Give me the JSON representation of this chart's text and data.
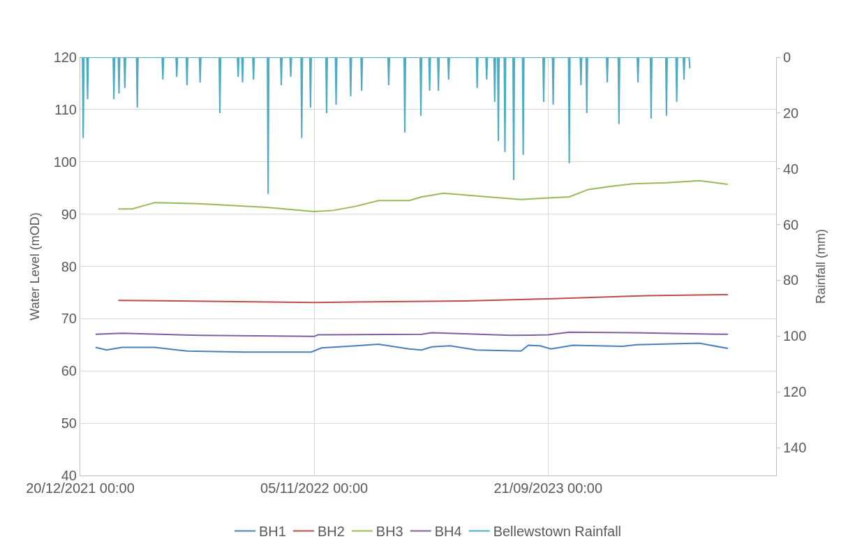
{
  "chart_data": {
    "type": "line",
    "xlabel": null,
    "ylabel": "Water Level (mOD)",
    "y2label": "Rainfall (mm)",
    "xlim": [
      "2021-12-20",
      "2024-07-29"
    ],
    "xticks": [
      {
        "value": "2021-12-20",
        "label": "20/12/2021 00:00"
      },
      {
        "value": "2022-11-05",
        "label": "05/11/2022 00:00"
      },
      {
        "value": "2023-09-21",
        "label": "21/09/2023 00:00"
      }
    ],
    "ylim": [
      40,
      120
    ],
    "yticks": [
      40,
      50,
      60,
      70,
      80,
      90,
      100,
      110,
      120
    ],
    "y2lim": [
      150,
      0
    ],
    "y2ticks": [
      0,
      20,
      40,
      60,
      80,
      100,
      120,
      140
    ],
    "grid": true,
    "legend": "bottom",
    "marker": "none",
    "line_style": "solid",
    "series": [
      {
        "name": "BH1",
        "color": "#4a7ebb",
        "x": [
          "2022-01-10",
          "2022-01-25",
          "2022-02-15",
          "2022-04-01",
          "2022-05-15",
          "2022-08-01",
          "2022-11-01",
          "2022-11-15",
          "2023-01-01",
          "2023-02-01",
          "2023-03-15",
          "2023-04-01",
          "2023-04-15",
          "2023-05-10",
          "2023-06-15",
          "2023-08-15",
          "2023-08-25",
          "2023-09-10",
          "2023-09-25",
          "2023-10-25",
          "2024-01-01",
          "2024-01-20",
          "2024-04-15",
          "2024-05-24"
        ],
        "values": [
          64.5,
          64.0,
          64.5,
          64.5,
          63.8,
          63.6,
          63.6,
          64.4,
          64.8,
          65.1,
          64.2,
          64.0,
          64.6,
          64.8,
          64.0,
          63.8,
          64.9,
          64.8,
          64.2,
          64.9,
          64.7,
          65.0,
          65.3,
          64.3
        ]
      },
      {
        "name": "BH2",
        "color": "#be4b48",
        "x": [
          "2022-02-10",
          "2022-11-05",
          "2023-06-01",
          "2023-09-21",
          "2024-02-01",
          "2024-05-24"
        ],
        "values": [
          73.5,
          73.1,
          73.4,
          73.8,
          74.4,
          74.6
        ]
      },
      {
        "name": "BH3",
        "color": "#98b954",
        "x": [
          "2022-02-10",
          "2022-03-01",
          "2022-04-01",
          "2022-06-01",
          "2022-09-01",
          "2022-11-05",
          "2022-12-01",
          "2023-01-01",
          "2023-02-01",
          "2023-03-15",
          "2023-04-01",
          "2023-05-01",
          "2023-07-01",
          "2023-08-15",
          "2023-09-21",
          "2023-10-20",
          "2023-11-15",
          "2023-12-15",
          "2024-01-15",
          "2024-03-01",
          "2024-04-15",
          "2024-05-24"
        ],
        "values": [
          91.0,
          91.0,
          92.2,
          92.0,
          91.3,
          90.5,
          90.7,
          91.5,
          92.6,
          92.6,
          93.3,
          94.0,
          93.3,
          92.8,
          93.1,
          93.3,
          94.7,
          95.3,
          95.8,
          96.0,
          96.4,
          95.7
        ]
      },
      {
        "name": "BH4",
        "color": "#7d60a0",
        "x": [
          "2022-01-10",
          "2022-02-15",
          "2022-06-01",
          "2022-11-05",
          "2022-11-10",
          "2023-04-01",
          "2023-04-15",
          "2023-08-01",
          "2023-09-21",
          "2023-10-20",
          "2024-01-15",
          "2024-05-24"
        ],
        "values": [
          67.0,
          67.2,
          66.8,
          66.6,
          66.9,
          67.0,
          67.3,
          66.8,
          66.9,
          67.4,
          67.3,
          67.0
        ]
      },
      {
        "name": "Bellewstown Rainfall",
        "color": "#4bacc6",
        "axis": "y2",
        "x": [
          "2021-12-20",
          "2021-12-23",
          "2021-12-24",
          "2021-12-25",
          "2021-12-29",
          "2021-12-30",
          "2021-12-31",
          "2022-02-03",
          "2022-02-04",
          "2022-02-05",
          "2022-02-10",
          "2022-02-11",
          "2022-02-12",
          "2022-02-18",
          "2022-02-19",
          "2022-02-20",
          "2022-03-07",
          "2022-03-08",
          "2022-03-09",
          "2022-04-11",
          "2022-04-12",
          "2022-04-13",
          "2022-04-30",
          "2022-05-01",
          "2022-05-02",
          "2022-05-14",
          "2022-05-15",
          "2022-05-16",
          "2022-06-01",
          "2022-06-02",
          "2022-06-03",
          "2022-06-28",
          "2022-06-29",
          "2022-06-30",
          "2022-07-23",
          "2022-07-24",
          "2022-07-25",
          "2022-07-29",
          "2022-07-30",
          "2022-07-31",
          "2022-08-13",
          "2022-08-14",
          "2022-08-15",
          "2022-09-02",
          "2022-09-03",
          "2022-09-04",
          "2022-09-20",
          "2022-09-21",
          "2022-09-22",
          "2022-10-03",
          "2022-10-04",
          "2022-10-05",
          "2022-10-18",
          "2022-10-19",
          "2022-10-20",
          "2022-10-30",
          "2022-10-31",
          "2022-11-01",
          "2022-11-21",
          "2022-11-22",
          "2022-11-23",
          "2022-12-04",
          "2022-12-05",
          "2022-12-06",
          "2022-12-24",
          "2022-12-25",
          "2022-12-26",
          "2023-01-08",
          "2023-01-09",
          "2023-01-10",
          "2023-02-14",
          "2023-02-15",
          "2023-02-16",
          "2023-03-08",
          "2023-03-09",
          "2023-03-10",
          "2023-03-30",
          "2023-03-31",
          "2023-04-01",
          "2023-04-11",
          "2023-04-12",
          "2023-04-13",
          "2023-04-23",
          "2023-04-24",
          "2023-04-25",
          "2023-05-07",
          "2023-05-08",
          "2023-05-09",
          "2023-06-15",
          "2023-06-16",
          "2023-06-17",
          "2023-06-28",
          "2023-06-29",
          "2023-06-30",
          "2023-07-09",
          "2023-07-10",
          "2023-07-11",
          "2023-07-14",
          "2023-07-15",
          "2023-07-16",
          "2023-07-23",
          "2023-07-24",
          "2023-07-25",
          "2023-08-04",
          "2023-08-05",
          "2023-08-06",
          "2023-08-17",
          "2023-08-18",
          "2023-08-19",
          "2023-09-14",
          "2023-09-15",
          "2023-09-16",
          "2023-09-27",
          "2023-09-28",
          "2023-09-29",
          "2023-10-19",
          "2023-10-20",
          "2023-10-21",
          "2023-11-04",
          "2023-11-05",
          "2023-11-06",
          "2023-11-12",
          "2023-11-13",
          "2023-11-14",
          "2023-12-10",
          "2023-12-11",
          "2023-12-12",
          "2023-12-26",
          "2023-12-27",
          "2023-12-28",
          "2024-01-21",
          "2024-01-22",
          "2024-01-23",
          "2024-02-08",
          "2024-02-09",
          "2024-02-10",
          "2024-02-29",
          "2024-03-01",
          "2024-03-02",
          "2024-03-14",
          "2024-03-15",
          "2024-03-16",
          "2024-03-24",
          "2024-03-25",
          "2024-03-26",
          "2024-04-01",
          "2024-04-02"
        ],
        "values": [
          0,
          0,
          29,
          0,
          0,
          15,
          0,
          0,
          15,
          0,
          0,
          13,
          0,
          0,
          11,
          0,
          0,
          18,
          0,
          0,
          8,
          0,
          0,
          7,
          0,
          0,
          10,
          0,
          0,
          9,
          0,
          0,
          20,
          0,
          0,
          7,
          0,
          0,
          9,
          0,
          0,
          8,
          0,
          0,
          49,
          0,
          0,
          10,
          0,
          0,
          7,
          0,
          0,
          29,
          0,
          0,
          18,
          0,
          0,
          20,
          0,
          0,
          17,
          0,
          0,
          14,
          0,
          0,
          12,
          0,
          0,
          10,
          0,
          0,
          27,
          0,
          0,
          21,
          0,
          0,
          12,
          0,
          0,
          12,
          0,
          0,
          8,
          0,
          0,
          11,
          0,
          0,
          8,
          0,
          0,
          16,
          0,
          0,
          30,
          0,
          0,
          34,
          0,
          0,
          44,
          0,
          0,
          35,
          0,
          0,
          16,
          0,
          0,
          17,
          0,
          0,
          38,
          0,
          0,
          10,
          0,
          0,
          20,
          0,
          0,
          9,
          0,
          0,
          24,
          0,
          0,
          9,
          0,
          0,
          22,
          0,
          0,
          21,
          0,
          0,
          16,
          0,
          0,
          8,
          0,
          0,
          4
        ]
      }
    ]
  }
}
